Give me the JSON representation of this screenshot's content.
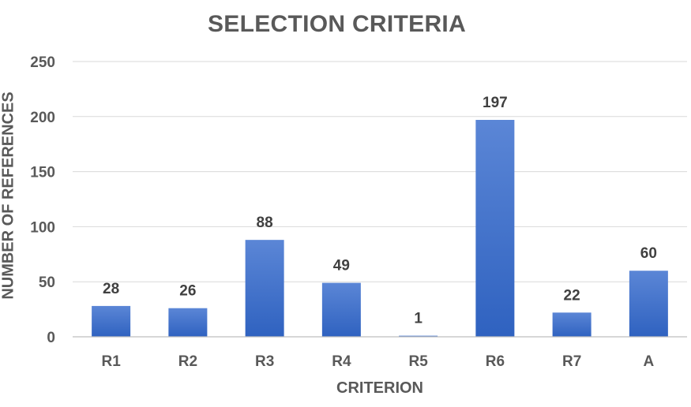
{
  "chart_data": {
    "type": "bar",
    "title": "SELECTION CRITERIA",
    "xlabel": "CRITERION",
    "ylabel": "NUMBER OF REFERENCES",
    "categories": [
      "R1",
      "R2",
      "R3",
      "R4",
      "R5",
      "R6",
      "R7",
      "A"
    ],
    "values": [
      28,
      26,
      88,
      49,
      1,
      197,
      22,
      60
    ],
    "ylim": [
      0,
      250
    ],
    "yticks": [
      "0",
      "50",
      "100",
      "150",
      "200",
      "250"
    ],
    "grid": true,
    "legend": "none",
    "data_labels": true,
    "colors": {
      "bar_top": "#5b86d6",
      "bar_bottom": "#2f62c0",
      "grid": "#d9d9d9",
      "axis": "#bfbfbf",
      "text": "#595959",
      "label": "#404040"
    }
  }
}
